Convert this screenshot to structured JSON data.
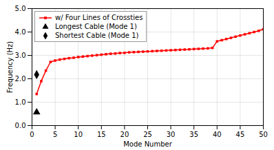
{
  "chart_data": {
    "type": "line",
    "xlabel": "Mode Number",
    "ylabel": "Frequency (Hz)",
    "xlim": [
      0,
      50
    ],
    "ylim": [
      0,
      5
    ],
    "xticks": [
      0,
      5,
      10,
      15,
      20,
      25,
      30,
      35,
      40,
      45,
      50
    ],
    "yticks": [
      0,
      1,
      2,
      3,
      4,
      5
    ],
    "grid": true,
    "legend": "upper left",
    "series": [
      {
        "name": "w/ Four Lines of Crossties",
        "type": "line",
        "color": "#ff0000",
        "marker": "square",
        "x": [
          1,
          2,
          3,
          4,
          5,
          6,
          7,
          8,
          9,
          10,
          11,
          12,
          13,
          14,
          15,
          16,
          17,
          18,
          19,
          20,
          21,
          22,
          23,
          24,
          25,
          26,
          27,
          28,
          29,
          30,
          31,
          32,
          33,
          34,
          35,
          36,
          37,
          38,
          39,
          40,
          41,
          42,
          43,
          44,
          45,
          46,
          47,
          48,
          49,
          50
        ],
        "values": [
          1.35,
          1.9,
          2.35,
          2.72,
          2.78,
          2.82,
          2.85,
          2.88,
          2.9,
          2.93,
          2.95,
          2.97,
          2.99,
          3.01,
          3.03,
          3.05,
          3.07,
          3.08,
          3.1,
          3.11,
          3.13,
          3.14,
          3.15,
          3.16,
          3.17,
          3.18,
          3.19,
          3.2,
          3.21,
          3.22,
          3.23,
          3.24,
          3.25,
          3.26,
          3.27,
          3.28,
          3.29,
          3.3,
          3.32,
          3.6,
          3.65,
          3.7,
          3.75,
          3.8,
          3.85,
          3.9,
          3.95,
          4.0,
          4.05,
          4.12
        ]
      },
      {
        "name": "Longest Cable (Mode 1)",
        "type": "scatter",
        "color": "#000000",
        "marker": "triangle",
        "x": [
          1
        ],
        "values": [
          0.57
        ]
      },
      {
        "name": "Shortest Cable (Mode 1)",
        "type": "scatter",
        "color": "#000000",
        "marker": "diamond",
        "x": [
          1
        ],
        "values": [
          2.18
        ]
      }
    ]
  }
}
